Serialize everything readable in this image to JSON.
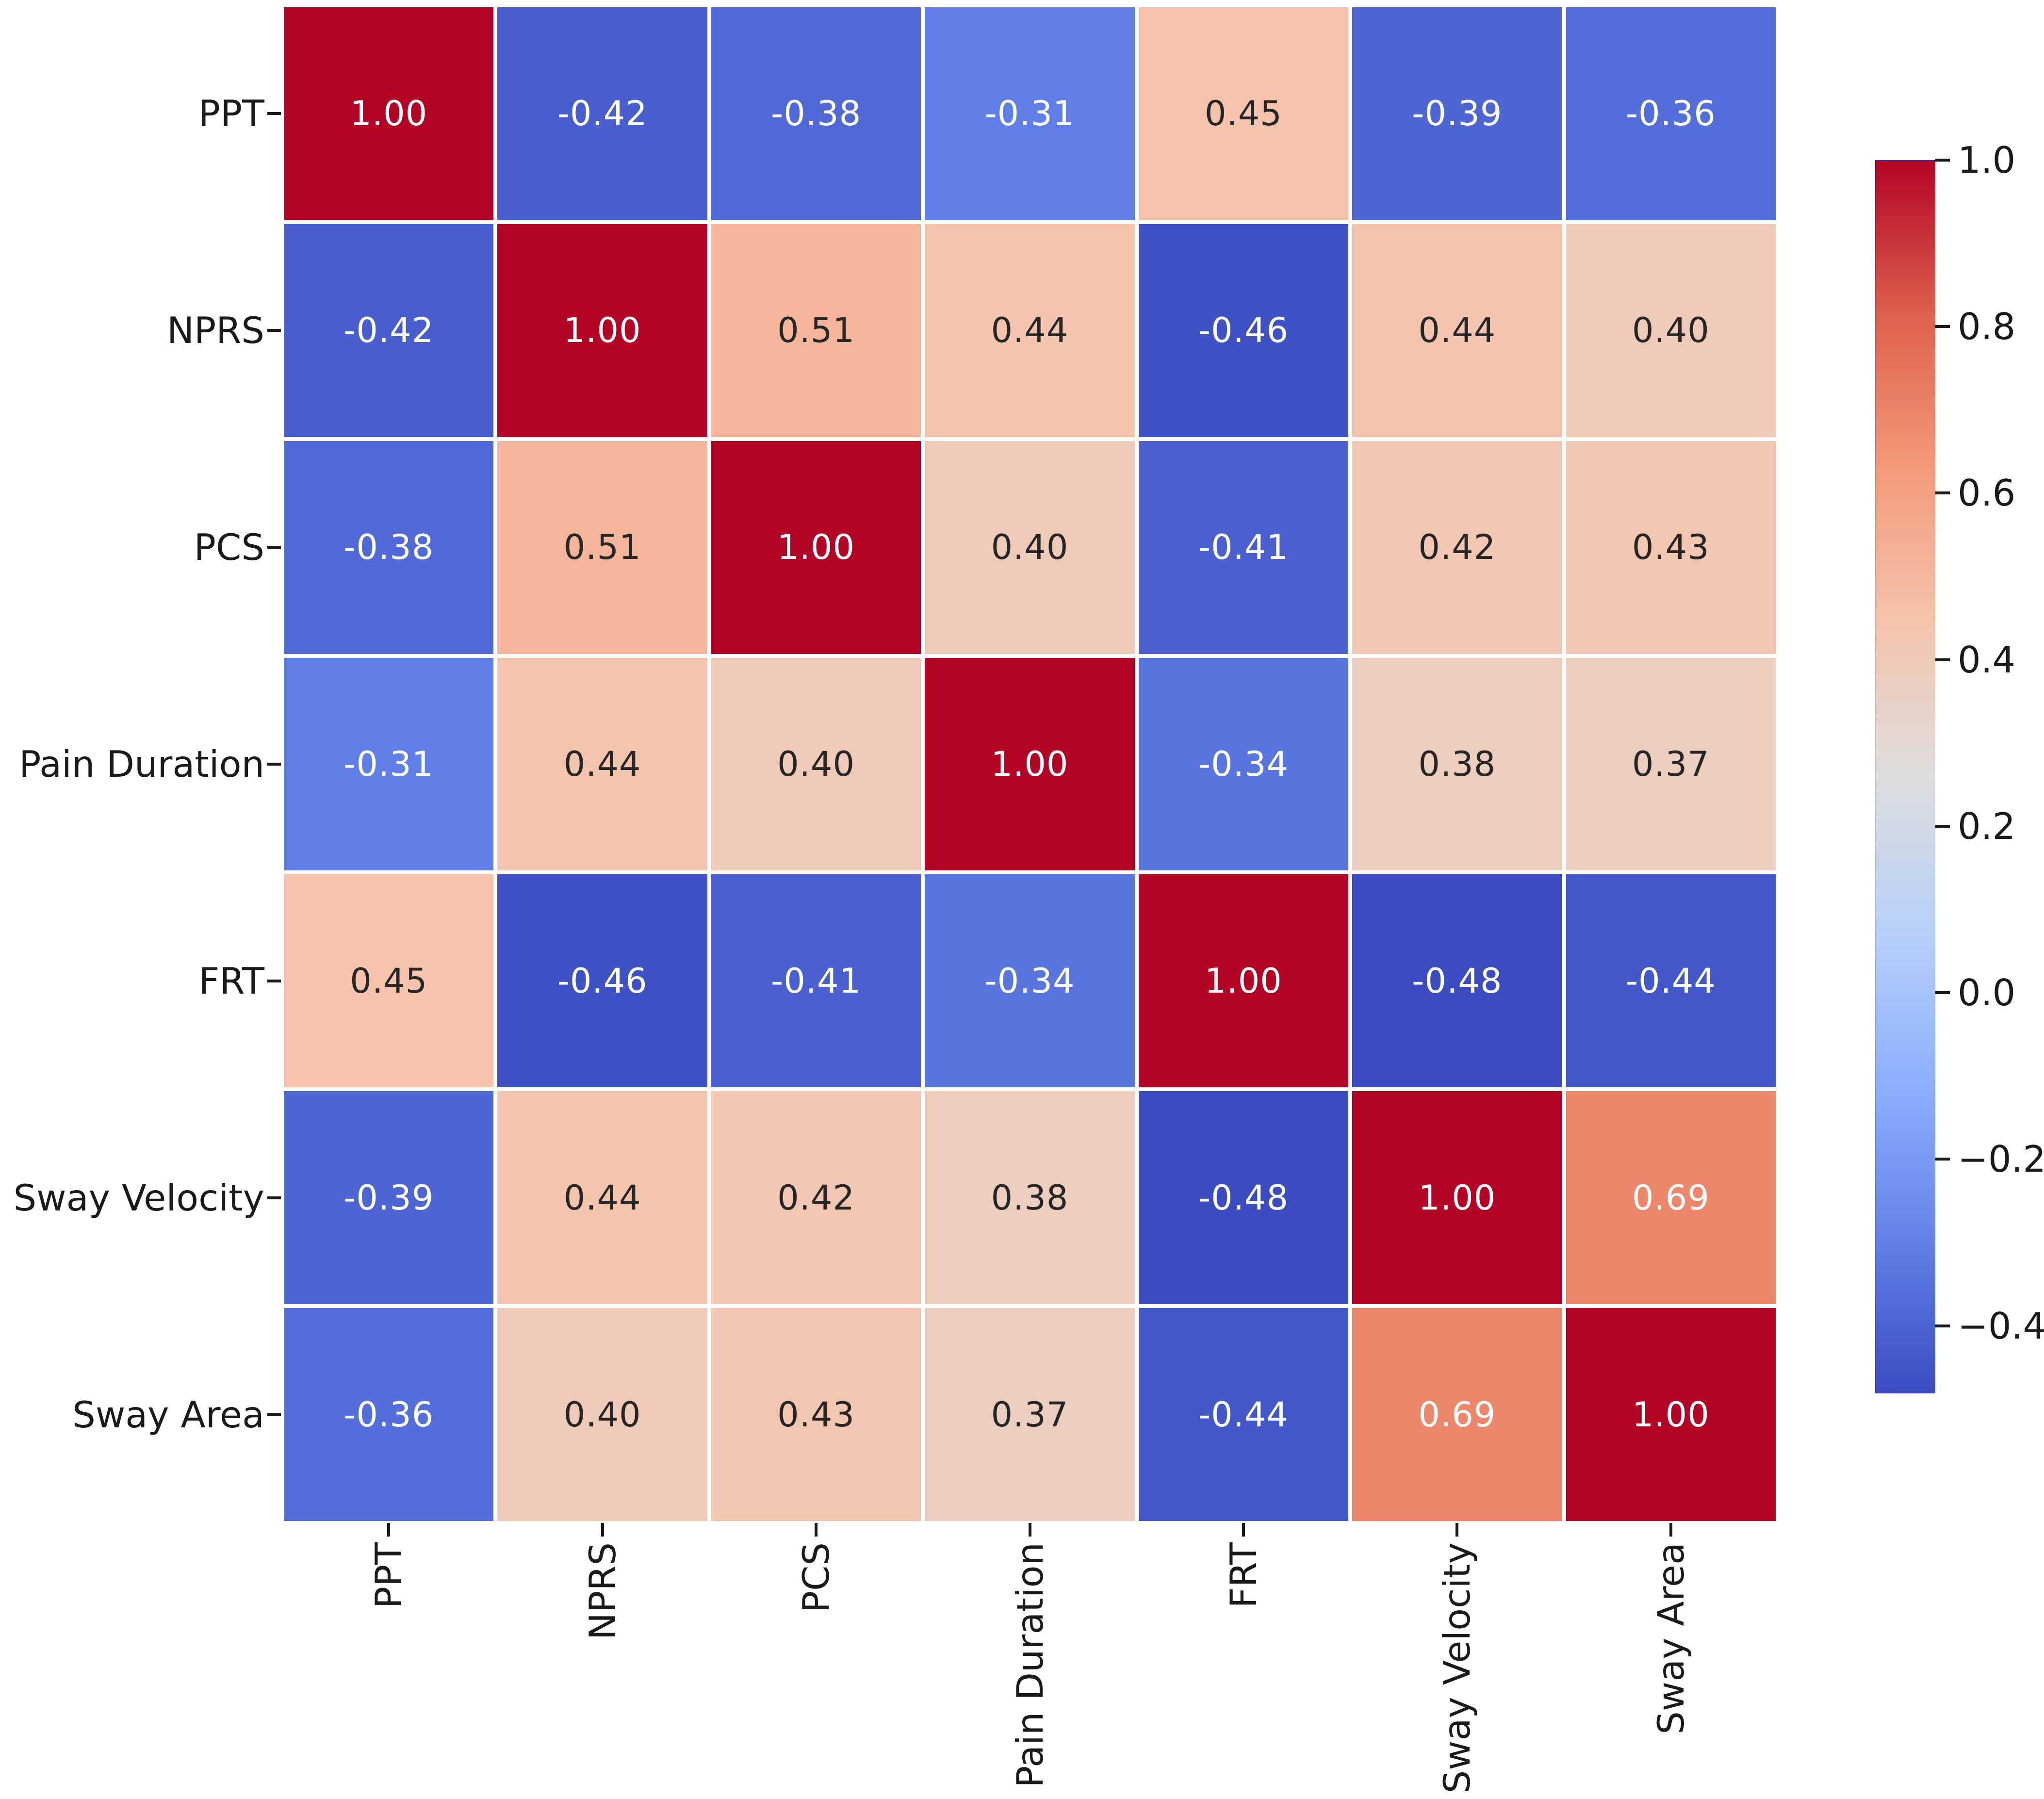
{
  "chart_data": {
    "type": "heatmap",
    "title": "",
    "categories": [
      "PPT",
      "NPRS",
      "PCS",
      "Pain Duration",
      "FRT",
      "Sway Velocity",
      "Sway Area"
    ],
    "matrix": [
      [
        1.0,
        -0.42,
        -0.38,
        -0.31,
        0.45,
        -0.39,
        -0.36
      ],
      [
        -0.42,
        1.0,
        0.51,
        0.44,
        -0.46,
        0.44,
        0.4
      ],
      [
        -0.38,
        0.51,
        1.0,
        0.4,
        -0.41,
        0.42,
        0.43
      ],
      [
        -0.31,
        0.44,
        0.4,
        1.0,
        -0.34,
        0.38,
        0.37
      ],
      [
        0.45,
        -0.46,
        -0.41,
        -0.34,
        1.0,
        -0.48,
        -0.44
      ],
      [
        -0.39,
        0.44,
        0.42,
        0.38,
        -0.48,
        1.0,
        0.69
      ],
      [
        -0.36,
        0.4,
        0.43,
        0.37,
        -0.44,
        0.69,
        1.0
      ]
    ],
    "vmin": -0.48,
    "vmax": 1.0,
    "value_decimals": 2,
    "grid_line_color": "#ffffff",
    "annotation_color_dark": "#262626",
    "annotation_color_light": "#ffffff",
    "tick_label_color": "#1a1a1a",
    "colormap": {
      "name": "coolwarm",
      "stops": [
        "#3b4cc0",
        "#6282ea",
        "#8db0fe",
        "#b8d0f9",
        "#dddddd",
        "#f5c4ad",
        "#f49a7b",
        "#de604d",
        "#b40426"
      ]
    },
    "colorbar": {
      "tick_labels": [
        "1.0",
        "0.8",
        "0.6",
        "0.4",
        "0.2",
        "0.0",
        "−0.2",
        "−0.4"
      ],
      "tick_values": [
        1.0,
        0.8,
        0.6,
        0.4,
        0.2,
        0.0,
        -0.2,
        -0.4
      ],
      "position": "right"
    },
    "legend_position": "none",
    "grid": false,
    "xlabel": "",
    "ylabel": ""
  }
}
